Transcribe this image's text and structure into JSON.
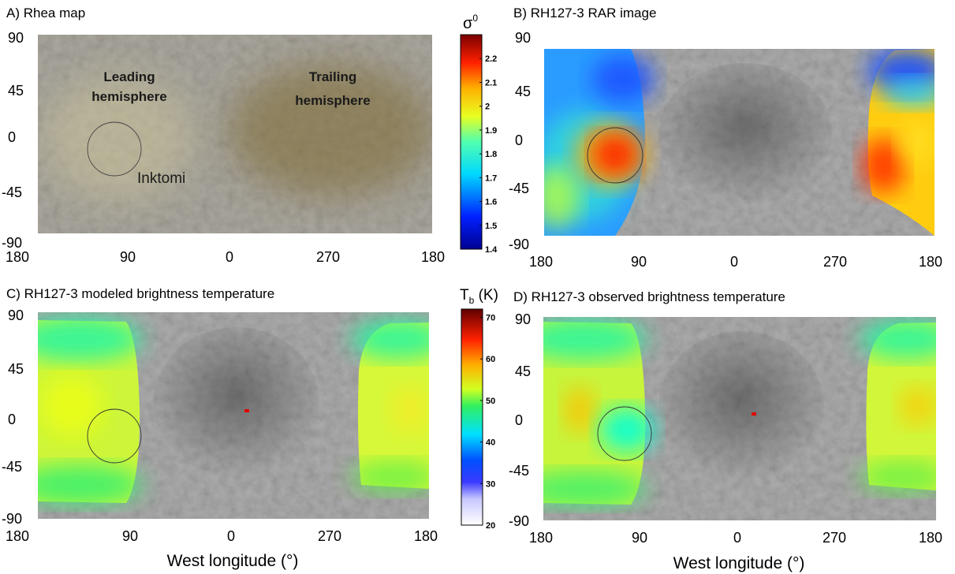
{
  "panels": [
    {
      "id": "A",
      "title": "A) Rhea map",
      "y_ticks": [
        "90",
        "45",
        "0",
        "-45",
        "-90"
      ],
      "x_ticks": [
        "180",
        "90",
        "0",
        "270",
        "180"
      ],
      "xlabel": "",
      "labels": {
        "leading_line1": "Leading",
        "leading_line2": "hemisphere",
        "trailing_line1": "Trailing",
        "trailing_line2": "hemisphere",
        "inktomi": "Inktomi"
      }
    },
    {
      "id": "B",
      "title": "B) RH127-3 RAR image",
      "y_ticks": [
        "90",
        "45",
        "0",
        "-45",
        "-90"
      ],
      "x_ticks": [
        "180",
        "90",
        "0",
        "270",
        "180"
      ],
      "xlabel": ""
    },
    {
      "id": "C",
      "title": "C) RH127-3 modeled brightness temperature",
      "y_ticks": [
        "90",
        "45",
        "0",
        "-45",
        "-90"
      ],
      "x_ticks": [
        "180",
        "90",
        "0",
        "270",
        "180"
      ],
      "xlabel": "West longitude (°)"
    },
    {
      "id": "D",
      "title": "D) RH127-3 observed brightness temperature",
      "y_ticks": [
        "90",
        "45",
        "0",
        "-45",
        "-90"
      ],
      "x_ticks": [
        "180",
        "90",
        "0",
        "270",
        "180"
      ],
      "xlabel": "West longitude (°)"
    }
  ],
  "colorbars": [
    {
      "id": "sigma",
      "title_main": "σ",
      "title_sup": "0",
      "min": 1.4,
      "max": 2.3,
      "ticks": [
        "2.2",
        "2.1",
        "2",
        "1.9",
        "1.8",
        "1.7",
        "1.6",
        "1.5",
        "1.4"
      ],
      "tick_values": [
        2.2,
        2.1,
        2.0,
        1.9,
        1.8,
        1.7,
        1.6,
        1.5,
        1.4
      ]
    },
    {
      "id": "tb",
      "title_main": "T",
      "title_sub": "b",
      "title_unit": " (K)",
      "min": 20,
      "max": 72,
      "ticks": [
        "70",
        "60",
        "50",
        "40",
        "30",
        "20"
      ],
      "tick_values": [
        70,
        60,
        50,
        40,
        30,
        20
      ]
    }
  ],
  "colors": {
    "jet_dark_red": "#800000",
    "jet_red": "#ff1a00",
    "jet_yellow": "#fff200",
    "jet_green": "#35f060",
    "jet_cyan": "#00f0ff",
    "jet_blue": "#1030ff",
    "jet_navy": "#000090",
    "surface_gray": "#9a9a9a"
  }
}
